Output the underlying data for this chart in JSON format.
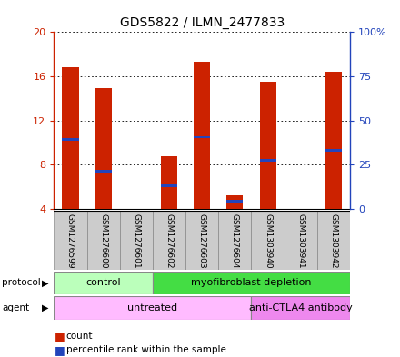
{
  "title": "GDS5822 / ILMN_2477833",
  "samples": [
    "GSM1276599",
    "GSM1276600",
    "GSM1276601",
    "GSM1276602",
    "GSM1276603",
    "GSM1276604",
    "GSM1303940",
    "GSM1303941",
    "GSM1303942"
  ],
  "count_values": [
    16.8,
    14.9,
    4.0,
    8.8,
    17.3,
    5.2,
    15.5,
    4.0,
    16.4
  ],
  "percentile_values": [
    10.3,
    7.4,
    4.0,
    6.1,
    10.5,
    4.7,
    8.4,
    4.0,
    9.3
  ],
  "ylim_left": [
    4,
    20
  ],
  "ylim_right": [
    0,
    100
  ],
  "yticks_left": [
    4,
    8,
    12,
    16,
    20
  ],
  "yticks_right": [
    0,
    25,
    50,
    75,
    100
  ],
  "ytick_labels_left": [
    "4",
    "8",
    "12",
    "16",
    "20"
  ],
  "ytick_labels_right": [
    "0",
    "25",
    "50",
    "75",
    "100%"
  ],
  "bar_color": "#cc2200",
  "blue_color": "#2244bb",
  "protocol_groups": [
    {
      "label": "control",
      "start": 0,
      "end": 3,
      "color": "#bbffbb"
    },
    {
      "label": "myofibroblast depletion",
      "start": 3,
      "end": 9,
      "color": "#44dd44"
    }
  ],
  "agent_groups": [
    {
      "label": "untreated",
      "start": 0,
      "end": 6,
      "color": "#ffbbff"
    },
    {
      "label": "anti-CTLA4 antibody",
      "start": 6,
      "end": 9,
      "color": "#ee88ee"
    }
  ],
  "bar_width": 0.5,
  "grid_color": "black",
  "bg_color": "white",
  "left_axis_color": "#cc2200",
  "right_axis_color": "#2244bb",
  "sample_box_color": "#cccccc",
  "sample_box_edge": "#888888"
}
